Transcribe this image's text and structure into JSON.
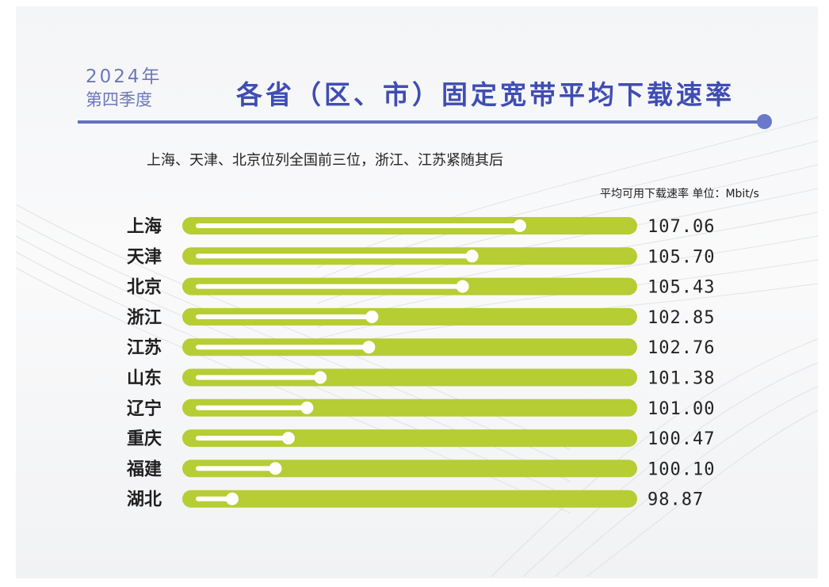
{
  "header": {
    "year": "2024年",
    "quarter": "第四季度",
    "title": "各省（区、市）固定宽带平均下载速率"
  },
  "subtitle": "上海、天津、北京位列全国前三位，浙江、江苏紧随其后",
  "unit_note": "平均可用下载速率 单位：Mbit/s",
  "colors": {
    "bar": "#b6cd33",
    "track": "#ffffff",
    "accent": "#6471c4",
    "title": "#3f4db4"
  },
  "chart_data": {
    "type": "bar",
    "orientation": "horizontal",
    "categories": [
      "上海",
      "天津",
      "北京",
      "浙江",
      "江苏",
      "山东",
      "辽宁",
      "重庆",
      "福建",
      "湖北"
    ],
    "values": [
      107.06,
      105.7,
      105.43,
      102.85,
      102.76,
      101.38,
      101.0,
      100.47,
      100.1,
      98.87
    ],
    "value_labels": [
      "107.06",
      "105.70",
      "105.43",
      "102.85",
      "102.76",
      "101.38",
      "101.00",
      "100.47",
      "100.10",
      "98.87"
    ],
    "title": "各省（区、市）固定宽带平均下载速率",
    "xlabel": "",
    "ylabel": "",
    "grid": false,
    "legend": "none"
  }
}
